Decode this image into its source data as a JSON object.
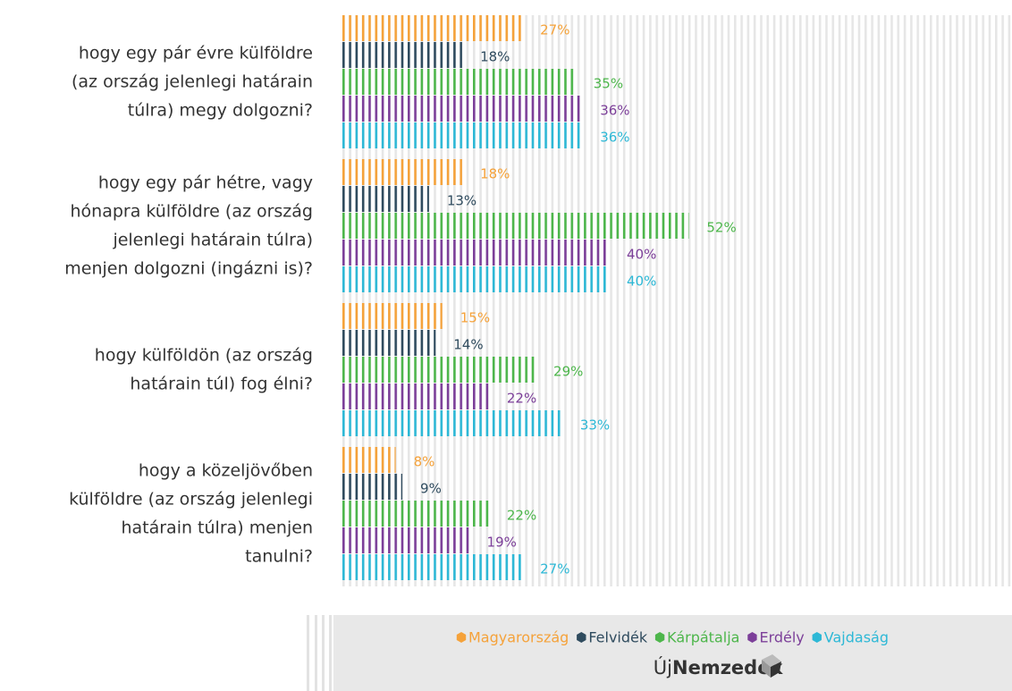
{
  "chart_data": {
    "type": "bar",
    "categories": [
      [
        "hogy egy pár évre külföldre",
        "(az ország jelenlegi határain",
        "túlra) megy dolgozni?"
      ],
      [
        "hogy egy pár hétre, vagy",
        "hónapra külföldre (az ország",
        "jelenlegi határain túlra)",
        "menjen dolgozni (ingázni is)?"
      ],
      [
        "hogy külföldön (az ország",
        "határain túl) fog élni?"
      ],
      [
        "hogy a közeljövőben",
        "külföldre (az ország jelenlegi",
        "határain túlra) menjen",
        "tanulni?"
      ]
    ],
    "series": [
      {
        "name": "Magyarország",
        "color": "#f5a23a",
        "values": [
          27,
          18,
          15,
          8
        ],
        "value_labels": [
          "27%",
          "18%",
          "15%",
          "8%"
        ]
      },
      {
        "name": "Felvidék",
        "color": "#2f4b5e",
        "values": [
          18,
          13,
          14,
          9
        ],
        "value_labels": [
          "18%",
          "13%",
          "14%",
          "9%"
        ]
      },
      {
        "name": "Kárpátalja",
        "color": "#4db64b",
        "values": [
          35,
          52,
          29,
          22
        ],
        "value_labels": [
          "35%",
          "52%",
          "29%",
          "22%"
        ]
      },
      {
        "name": "Erdély",
        "color": "#7c3f99",
        "values": [
          36,
          40,
          22,
          19
        ],
        "value_labels": [
          "36%",
          "40%",
          "22%",
          "19%"
        ]
      },
      {
        "name": "Vajdaság",
        "color": "#2db8d6",
        "values": [
          36,
          40,
          33,
          27
        ],
        "value_labels": [
          "36%",
          "40%",
          "33%",
          "27%"
        ]
      }
    ],
    "xlim": [
      0,
      100
    ],
    "brand": {
      "prefix": "Új",
      "name": "Nemzedék"
    }
  }
}
